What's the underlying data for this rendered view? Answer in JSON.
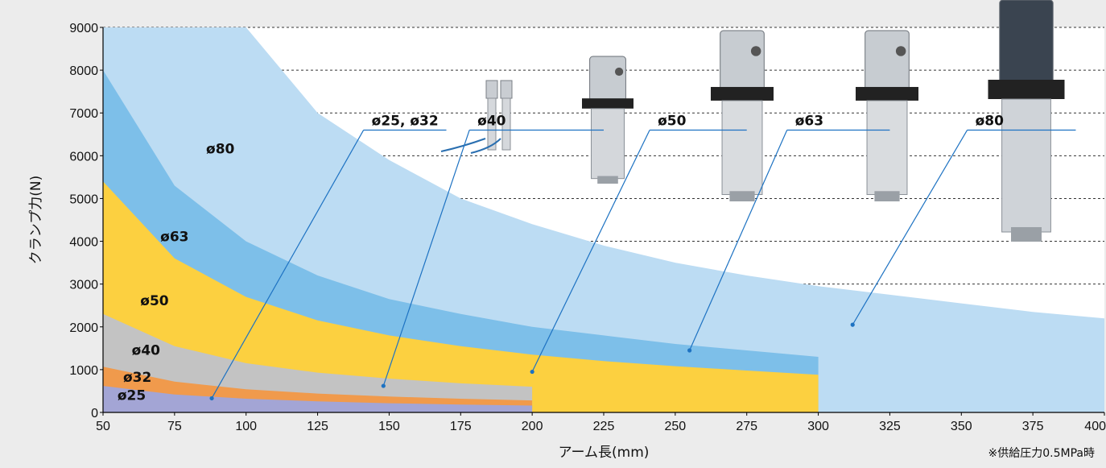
{
  "chart_data": {
    "type": "area",
    "xlabel": "アーム長(mm)",
    "ylabel": "クランプ力(N)",
    "note": "※供給圧力0.5MPa時",
    "xlim": [
      50,
      400
    ],
    "ylim": [
      0,
      9000
    ],
    "x_ticks": [
      50,
      75,
      100,
      125,
      150,
      175,
      200,
      225,
      250,
      275,
      300,
      325,
      350,
      375,
      400
    ],
    "y_ticks": [
      0,
      1000,
      2000,
      3000,
      4000,
      5000,
      6000,
      7000,
      8000,
      9000
    ],
    "grid": "horizontal-dashed",
    "series": [
      {
        "name": "ø80",
        "color": "#bcdcf3",
        "x": [
          50,
          100,
          125,
          150,
          175,
          200,
          225,
          250,
          275,
          300,
          325,
          350,
          375,
          400
        ],
        "values": [
          9000,
          9000,
          7000,
          5900,
          5000,
          4400,
          3900,
          3500,
          3200,
          2950,
          2750,
          2550,
          2350,
          2200
        ]
      },
      {
        "name": "ø63",
        "color": "#7dbfe9",
        "x": [
          50,
          75,
          100,
          125,
          150,
          175,
          200,
          225,
          250,
          275,
          300
        ],
        "values": [
          8000,
          5300,
          4000,
          3200,
          2650,
          2300,
          2000,
          1800,
          1600,
          1450,
          1300
        ]
      },
      {
        "name": "ø50",
        "color": "#fcd040",
        "x": [
          50,
          75,
          100,
          125,
          150,
          175,
          200,
          225,
          250,
          275,
          300
        ],
        "values": [
          5400,
          3600,
          2700,
          2150,
          1800,
          1550,
          1350,
          1200,
          1080,
          980,
          880
        ]
      },
      {
        "name": "ø40",
        "color": "#c3c3c3",
        "x": [
          50,
          75,
          100,
          125,
          150,
          175,
          200
        ],
        "values": [
          2300,
          1550,
          1150,
          930,
          790,
          680,
          600
        ]
      },
      {
        "name": "ø32",
        "color": "#f09a4c",
        "x": [
          50,
          75,
          100,
          125,
          150,
          175,
          200
        ],
        "values": [
          1070,
          720,
          540,
          440,
          370,
          320,
          280
        ]
      },
      {
        "name": "ø25",
        "color": "#a3a5d5",
        "x": [
          50,
          75,
          100,
          125,
          150,
          175,
          200
        ],
        "values": [
          620,
          420,
          320,
          260,
          215,
          185,
          160
        ]
      }
    ],
    "area_labels": [
      {
        "text": "ø80",
        "x": 91,
        "y": 6050
      },
      {
        "text": "ø63",
        "x": 75,
        "y": 4000
      },
      {
        "text": "ø50",
        "x": 68,
        "y": 2500
      },
      {
        "text": "ø40",
        "x": 65,
        "y": 1350
      },
      {
        "text": "ø32",
        "x": 62,
        "y": 720
      },
      {
        "text": "ø25",
        "x": 60,
        "y": 290
      }
    ],
    "callouts": [
      {
        "text": "ø25, ø32",
        "label_x": 145,
        "label_y": 6600,
        "line_end_x": 170,
        "point_x": 88,
        "point_y": 330
      },
      {
        "text": "ø40",
        "label_x": 182,
        "label_y": 6600,
        "line_end_x": 225,
        "point_x": 148,
        "point_y": 620
      },
      {
        "text": "ø50",
        "label_x": 245,
        "label_y": 6600,
        "line_end_x": 275,
        "point_x": 200,
        "point_y": 950
      },
      {
        "text": "ø63",
        "label_x": 293,
        "label_y": 6600,
        "line_end_x": 325,
        "point_x": 255,
        "point_y": 1450
      },
      {
        "text": "ø80",
        "label_x": 356,
        "label_y": 6600,
        "line_end_x": 390,
        "point_x": 312,
        "point_y": 2050
      }
    ]
  }
}
